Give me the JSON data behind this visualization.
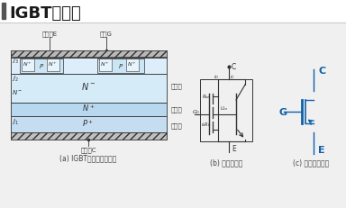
{
  "title": "IGBT原理图",
  "bg_color": "#f5f5f5",
  "title_color": "#1a1a1a",
  "title_fontsize": 13,
  "caption_a": "(a) IGBT内部结构截面图",
  "caption_b": "(b) 等效电路图",
  "caption_c": "(c) 电气图形符号",
  "label_emitter": "发射极E",
  "label_gate": "栅极G",
  "label_collector": "集电极C",
  "label_drift": "漂移区",
  "label_buffer": "缓冲区",
  "label_injection": "注入区",
  "line_color": "#333333",
  "light_blue": "#c8dff0",
  "mid_blue": "#a8c8e8",
  "hatch_fill": "#9ab8d0",
  "igbt_blue": "#1060a8",
  "caption_color": "#444444",
  "caption_fontsize": 5.5,
  "gray_line": "#888888"
}
